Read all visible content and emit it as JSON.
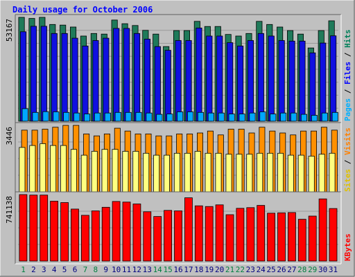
{
  "chart_data": {
    "type": "bar",
    "title": "Daily usage for October 2006",
    "categories": [
      "1",
      "2",
      "3",
      "4",
      "5",
      "6",
      "7",
      "8",
      "9",
      "10",
      "11",
      "12",
      "13",
      "14",
      "15",
      "16",
      "17",
      "18",
      "19",
      "20",
      "21",
      "22",
      "23",
      "24",
      "25",
      "26",
      "27",
      "28",
      "29",
      "30",
      "31"
    ],
    "weekend_days": [
      "1",
      "7",
      "8",
      "14",
      "15",
      "21",
      "22",
      "28",
      "29"
    ],
    "panels": [
      {
        "id": "requests",
        "max_label": "53167",
        "ylim": [
          0,
          53167
        ],
        "series": [
          {
            "name": "Hits",
            "color": "#1f7a5a",
            "values": [
              53167,
              52600,
              53167,
              49500,
              49200,
              48200,
              43600,
              44900,
              44600,
              51800,
              49900,
              49000,
              46500,
              44600,
              38200,
              46400,
              46400,
              51100,
              48500,
              48500,
              44400,
              43600,
              44900,
              51100,
              49500,
              48200,
              46400,
              44600,
              37500,
              46400,
              51400
            ]
          },
          {
            "name": "Files",
            "color": "#1010e0",
            "values": [
              45800,
              48600,
              48600,
              44900,
              44900,
              42500,
              38500,
              41300,
              42500,
              47500,
              47500,
              44900,
              42000,
              38200,
              36300,
              41300,
              41300,
              47700,
              43600,
              43600,
              40200,
              38500,
              41300,
              44900,
              43600,
              41300,
              41000,
              41000,
              35000,
              40000,
              43700
            ]
          },
          {
            "name": "Pages",
            "color": "#00a8ff",
            "values": [
              6400,
              4500,
              4900,
              4800,
              4500,
              4200,
              3700,
              4200,
              4200,
              4500,
              4500,
              4500,
              4200,
              3500,
              3700,
              4800,
              4800,
              4500,
              4200,
              4200,
              3700,
              3700,
              4200,
              4800,
              3700,
              4200,
              4200,
              3500,
              3000,
              4200,
              4500
            ]
          }
        ],
        "legend": [
          "Pages",
          "Files",
          "Hits"
        ]
      },
      {
        "id": "visitors",
        "max_label": "3446",
        "ylim": [
          0,
          3446
        ],
        "series": [
          {
            "name": "Visits",
            "color": "#ff9000",
            "values": [
              3200,
              3200,
              3250,
              3350,
              3446,
              3446,
              3000,
              2900,
              3000,
              3300,
              3150,
              3000,
              3000,
              2900,
              2900,
              3000,
              3000,
              3050,
              3150,
              2950,
              3250,
              3250,
              3050,
              3350,
              3150,
              3050,
              2950,
              3150,
              3150,
              3350,
              3200
            ]
          },
          {
            "name": "Sites",
            "color": "#ffff80",
            "values": [
              2300,
              2400,
              2500,
              2400,
              2400,
              2200,
              1900,
              2100,
              2200,
              2200,
              2100,
              2100,
              2000,
              1900,
              1900,
              2000,
              2000,
              2100,
              2000,
              2000,
              1950,
              1950,
              1950,
              2000,
              2000,
              2000,
              1900,
              1900,
              1850,
              1950,
              2000
            ]
          }
        ],
        "legend": [
          "Sites",
          "Visits"
        ]
      },
      {
        "id": "kbytes",
        "max_label": "741138",
        "ylim": [
          0,
          741138
        ],
        "series": [
          {
            "name": "KBytes",
            "color": "#ff0000",
            "values": [
              741138,
              736000,
              736000,
              668000,
              652000,
              580000,
              510000,
              560000,
              600000,
              665000,
              658000,
              637000,
              550000,
              497000,
              565000,
              560000,
              706000,
              616000,
              608000,
              627000,
              517000,
              588000,
              596000,
              621000,
              534000,
              538000,
              541000,
              466000,
              502000,
              693000,
              586000
            ]
          }
        ],
        "legend": [
          "KBytes"
        ]
      }
    ],
    "grid": true,
    "colors": {
      "background": "#c0c0c0",
      "panel": "#c0c0c0",
      "title": "#0000ff",
      "weekday_label": "#000080",
      "weekend_label": "#008040",
      "hits_label": "#00805a",
      "files_label": "#0000ff",
      "pages_label": "#00b0ff",
      "visits_label": "#ff8000",
      "sites_label": "#e0c000",
      "kbytes_label": "#ff0000"
    }
  }
}
